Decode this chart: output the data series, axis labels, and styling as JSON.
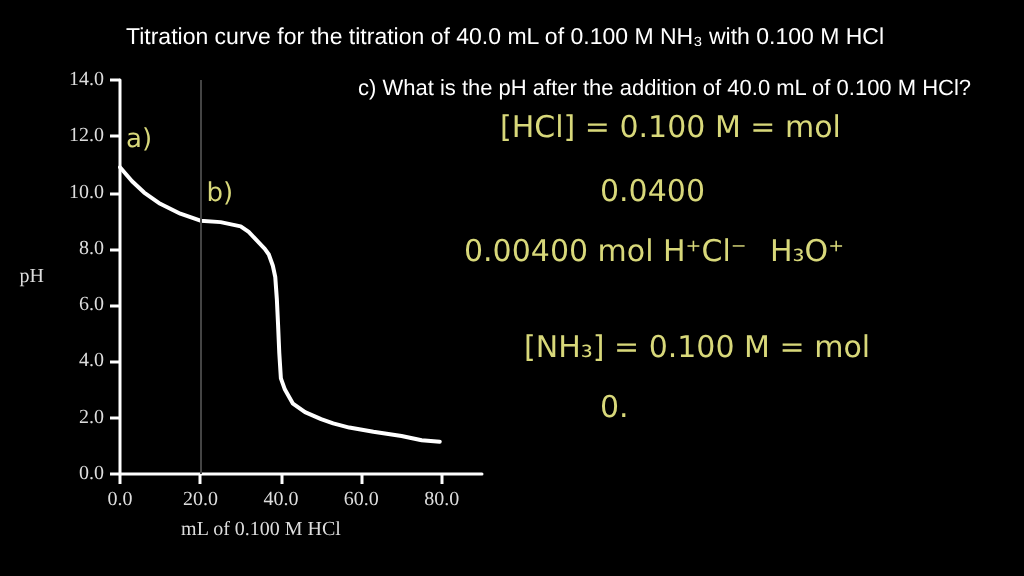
{
  "chart_data": {
    "type": "line",
    "title": "Titration curve for the titration of 40.0 mL of 0.100 M NH₃ with 0.100 M HCl",
    "subtitle": "c) What is the pH after the addition of 40.0 mL of 0.100 M HCl?",
    "xlabel": "mL of 0.100 M HCl",
    "ylabel": "pH",
    "x": [
      0,
      3,
      6,
      10,
      15,
      20,
      25,
      30,
      32,
      34,
      36,
      37,
      38,
      38.6,
      39,
      39.3,
      39.6,
      40,
      41,
      43,
      46,
      50,
      53,
      57,
      63,
      70,
      75,
      79.5
    ],
    "series": [
      {
        "color": "#ffffff",
        "values": [
          10.9,
          10.4,
          10.0,
          9.6,
          9.25,
          9.0,
          8.95,
          8.8,
          8.6,
          8.3,
          8.0,
          7.8,
          7.4,
          7.0,
          6.2,
          5.3,
          4.3,
          3.4,
          3.0,
          2.5,
          2.2,
          1.95,
          1.8,
          1.65,
          1.5,
          1.35,
          1.2,
          1.15
        ]
      }
    ],
    "xlim": [
      0,
      90
    ],
    "xticks": [
      {
        "value": 0,
        "label": "0.0"
      },
      {
        "value": 20,
        "label": "20.0"
      },
      {
        "value": 40,
        "label": "40.0"
      },
      {
        "value": 60,
        "label": "60.0"
      },
      {
        "value": 80,
        "label": "80.0"
      }
    ],
    "ylim": [
      0,
      14
    ],
    "yticks": [
      {
        "value": 0,
        "label": "0.0"
      },
      {
        "value": 2,
        "label": "2.0"
      },
      {
        "value": 4,
        "label": "4.0"
      },
      {
        "value": 6,
        "label": "6.0"
      },
      {
        "value": 8,
        "label": "8.0"
      },
      {
        "value": 10,
        "label": "10.0"
      },
      {
        "value": 12,
        "label": "12.0"
      },
      {
        "value": 14,
        "label": "14.0"
      }
    ],
    "ref_lines": [
      {
        "axis": "x",
        "value": 20,
        "color": "#444444"
      }
    ],
    "annotations": [
      {
        "text": "a)",
        "x": 0,
        "y": 10.9
      },
      {
        "text": "b)",
        "x": 20,
        "y": 9.0
      },
      "[HCl] = 0.100 M = mol",
      "0.0400",
      "0.00400 mol H⁺Cl⁻",
      "H₃O⁺",
      "[NH₃] = 0.100 M = mol",
      "0."
    ],
    "grid": false,
    "marker": "none",
    "line_style": "solid"
  }
}
